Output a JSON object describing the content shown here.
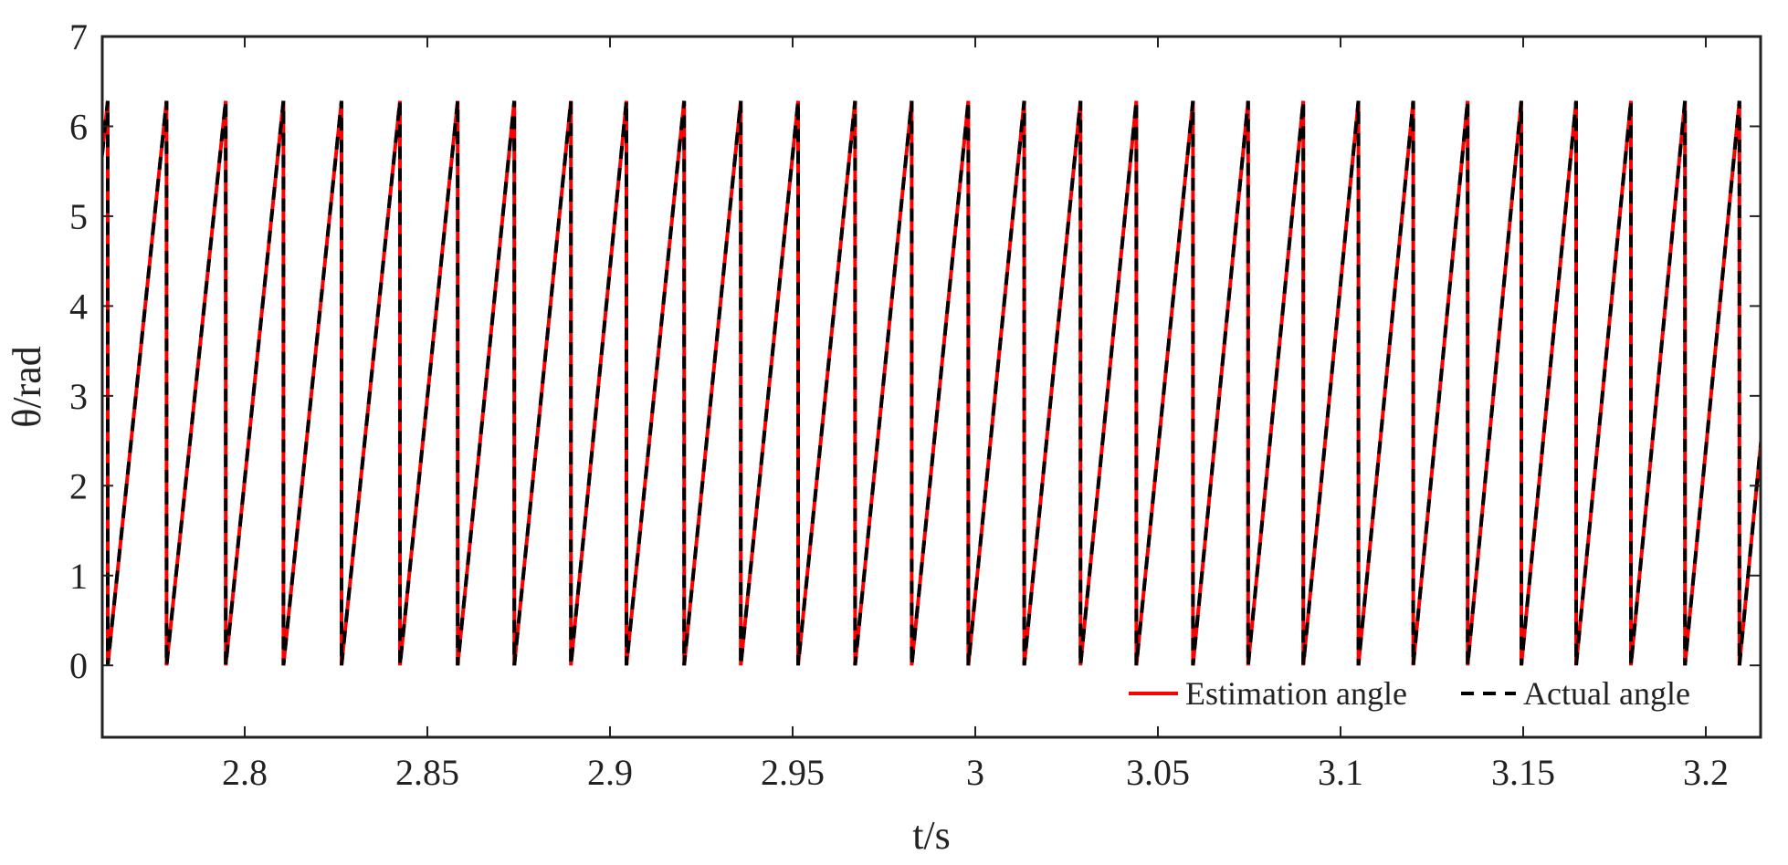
{
  "chart_data": {
    "type": "line",
    "title": "",
    "xlabel": "t/s",
    "ylabel": "θ/rad",
    "xlim": [
      2.761,
      3.215
    ],
    "ylim": [
      -0.8,
      7
    ],
    "xticks": [
      2.8,
      2.85,
      2.9,
      2.95,
      3,
      3.05,
      3.1,
      3.15,
      3.2
    ],
    "xtick_labels": [
      "2.8",
      "2.85",
      "2.9",
      "2.95",
      "3",
      "3.05",
      "3.1",
      "3.15",
      "3.2"
    ],
    "yticks": [
      0,
      1,
      2,
      3,
      4,
      5,
      6,
      7
    ],
    "ytick_labels": [
      "0",
      "1",
      "2",
      "3",
      "4",
      "5",
      "6",
      "7"
    ],
    "grid": false,
    "legend_position": "bottom-right",
    "period_start": 2.7625,
    "reset_times": [
      2.7625,
      2.7786,
      2.7948,
      2.8106,
      2.8265,
      2.8425,
      2.8583,
      2.8738,
      2.8893,
      2.9045,
      2.9203,
      2.9358,
      2.9515,
      2.9671,
      2.9826,
      2.9981,
      3.0134,
      3.0288,
      3.0441,
      3.0596,
      3.0747,
      3.0898,
      3.1049,
      3.1199,
      3.1348,
      3.1495,
      3.1645,
      3.1795,
      3.1943,
      3.2092
    ],
    "peak_value": 6.2832,
    "series": [
      {
        "name": "Estimation angle",
        "color": "#ff0000",
        "style": "solid"
      },
      {
        "name": "Actual angle",
        "color": "#000000",
        "style": "dashed"
      }
    ]
  }
}
